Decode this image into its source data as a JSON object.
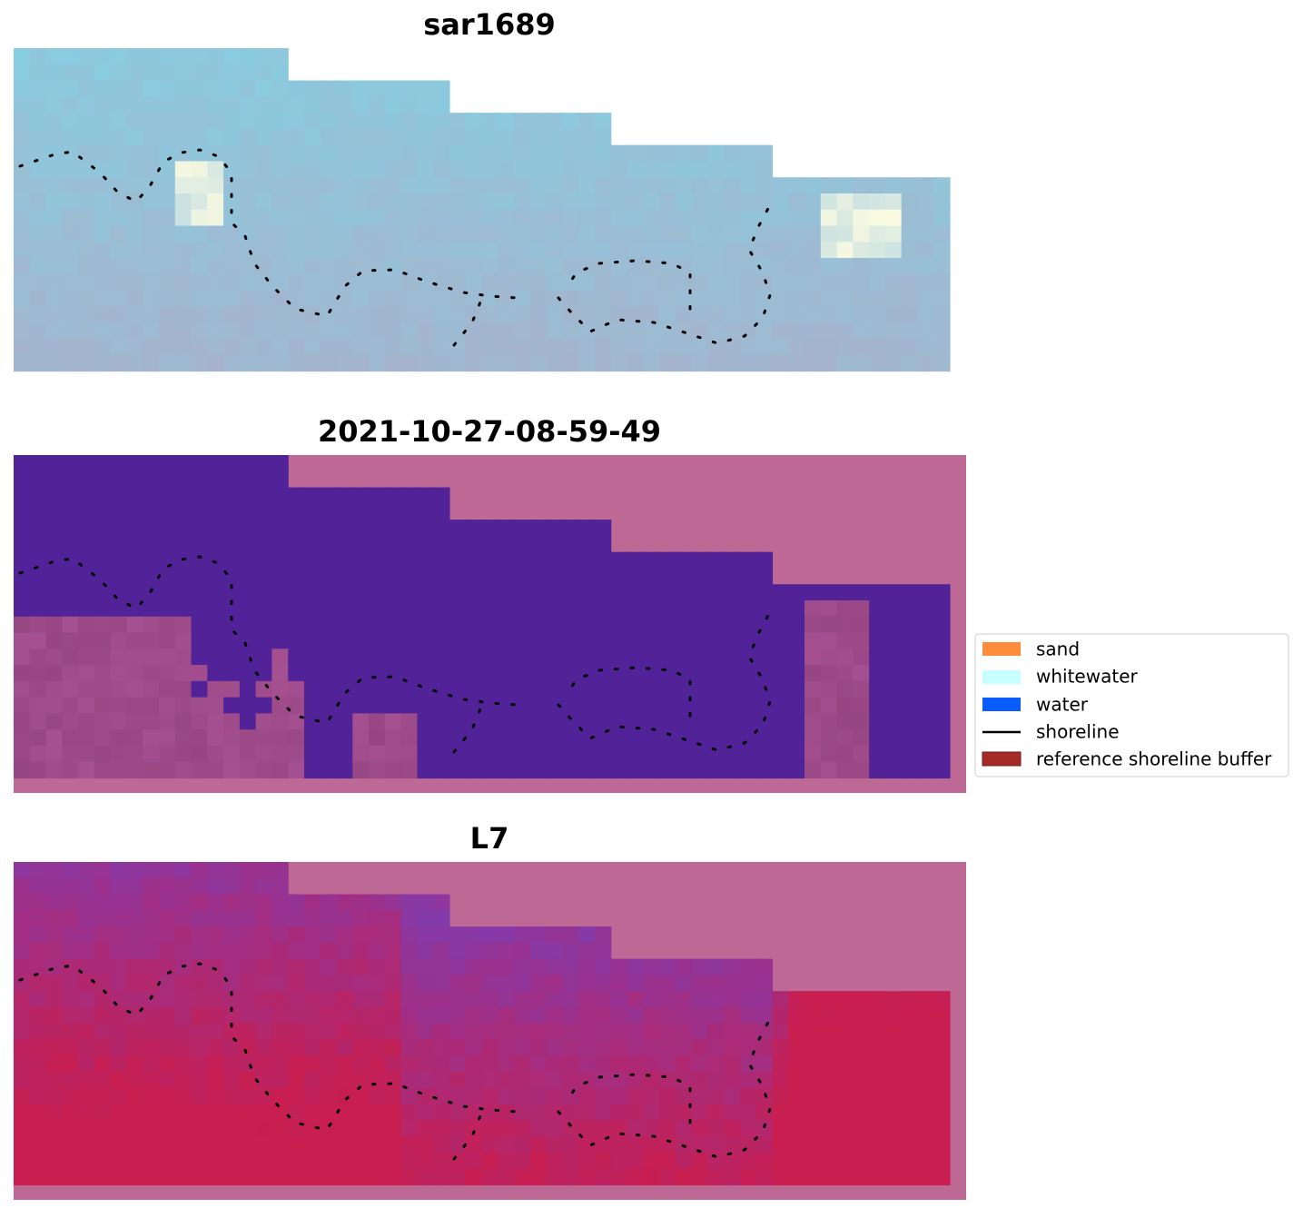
{
  "panels": [
    {
      "title": "sar1689"
    },
    {
      "title": "2021-10-27-08-59-49"
    },
    {
      "title": "L7"
    }
  ],
  "legend": {
    "entries": [
      "sand",
      "whitewater",
      "water",
      "shoreline",
      "reference shoreline buffer"
    ]
  }
}
